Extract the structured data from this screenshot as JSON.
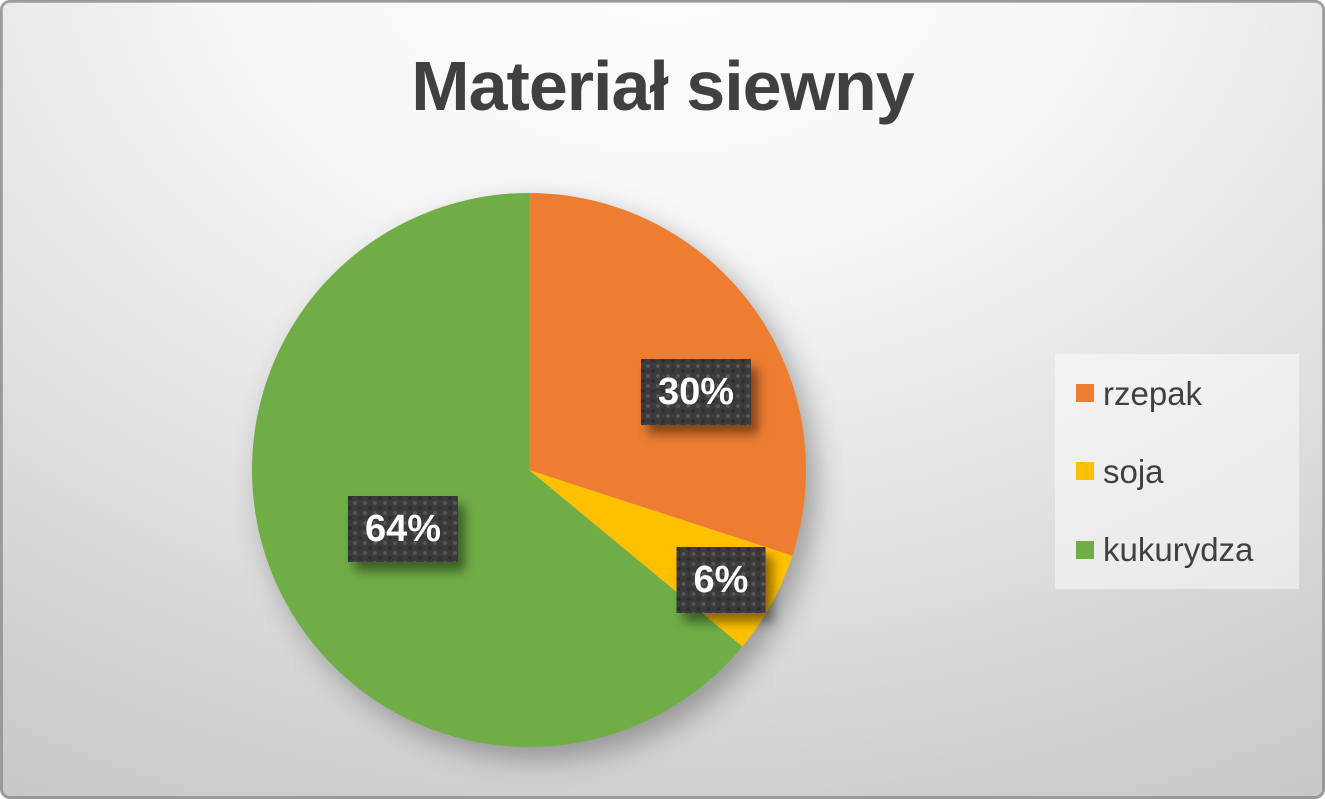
{
  "chart_data": {
    "type": "pie",
    "title": "Materiał siewny",
    "categories": [
      "rzepak",
      "soja",
      "kukurydza"
    ],
    "values": [
      30,
      6,
      64
    ],
    "unit": "%",
    "slice_labels": [
      "30%",
      "6%",
      "64%"
    ],
    "colors": [
      "#ED7D31",
      "#FFC000",
      "#70AD47"
    ],
    "start_angle_deg": 0,
    "direction": "clockwise",
    "legend_position": "right",
    "styles": {
      "title_color": "#404040",
      "legend_text_color": "#404040",
      "label_box_color": "#3B3B3B",
      "label_text_color": "#FFFFFF"
    }
  }
}
